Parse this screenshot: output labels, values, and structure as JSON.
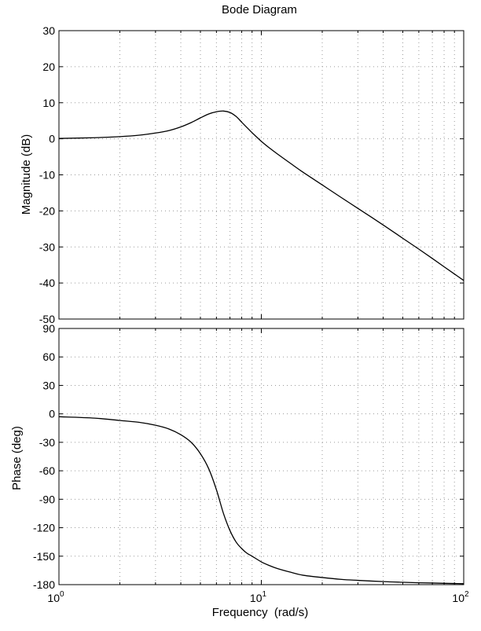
{
  "chart_data": {
    "type": "line",
    "title": "Bode Diagram",
    "xlabel": "Frequency  (rad/s)",
    "xscale": "log",
    "xlim": [
      1,
      100
    ],
    "x_ticks": [
      {
        "base": "10",
        "exp": "0",
        "value": 1
      },
      {
        "base": "10",
        "exp": "1",
        "value": 10
      },
      {
        "base": "10",
        "exp": "2",
        "value": 100
      }
    ],
    "grid": true,
    "panels": [
      {
        "name": "magnitude",
        "ylabel": "Magnitude (dB)",
        "ylim": [
          -50,
          30
        ],
        "yticks": [
          30,
          20,
          10,
          0,
          -10,
          -20,
          -30,
          -40,
          -50
        ],
        "series": [
          {
            "x": [
              1,
              1.5,
              2,
              2.5,
              3,
              3.5,
              4,
              4.5,
              5,
              5.5,
              6,
              6.5,
              7,
              7.5,
              8,
              8.5,
              9,
              10,
              11,
              12,
              14,
              16,
              20,
              25,
              30,
              40,
              50,
              60,
              70,
              80,
              90,
              100
            ],
            "y": [
              0.1,
              0.3,
              0.6,
              1.0,
              1.6,
              2.3,
              3.3,
              4.5,
              5.8,
              6.9,
              7.5,
              7.7,
              7.3,
              6.2,
              4.6,
              3.1,
              1.7,
              -0.7,
              -2.6,
              -4.2,
              -6.9,
              -9.2,
              -12.8,
              -16.4,
              -19.3,
              -23.9,
              -27.6,
              -30.6,
              -33.2,
              -35.5,
              -37.5,
              -39.3
            ]
          }
        ]
      },
      {
        "name": "phase",
        "ylabel": "Phase (deg)",
        "ylim": [
          -180,
          90
        ],
        "yticks": [
          90,
          60,
          30,
          0,
          -30,
          -60,
          -90,
          -120,
          -150,
          -180
        ],
        "series": [
          {
            "x": [
              1,
              1.5,
              2,
              2.5,
              3,
              3.5,
              4,
              4.5,
              5,
              5.5,
              6,
              6.5,
              7,
              7.5,
              8,
              8.5,
              9,
              10,
              11,
              12,
              14,
              16,
              20,
              25,
              30,
              40,
              50,
              60,
              70,
              80,
              90,
              100
            ],
            "y": [
              -3,
              -4.5,
              -7,
              -9,
              -12,
              -16,
              -22,
              -30,
              -42,
              -58,
              -80,
              -105,
              -123,
              -135,
              -142,
              -147,
              -150,
              -156,
              -160,
              -163,
              -167,
              -170,
              -172.5,
              -174.5,
              -175.5,
              -176.8,
              -177.5,
              -178,
              -178.3,
              -178.6,
              -178.8,
              -179
            ]
          }
        ]
      }
    ]
  }
}
